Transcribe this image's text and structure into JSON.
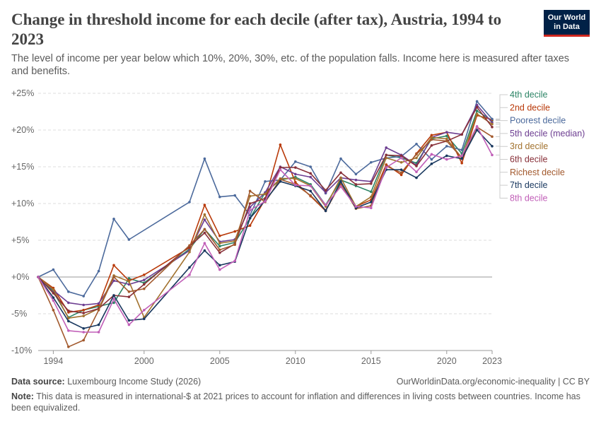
{
  "header": {
    "title": "Change in threshold income for each decile (after tax), Austria, 1994 to 2023",
    "subtitle": "The level of income per year below which 10%, 20%, 30%, etc. of the population falls. Income here is measured after taxes and benefits.",
    "logo_line1": "Our World",
    "logo_line2": "in Data"
  },
  "footer": {
    "source_label": "Data source:",
    "source_text": "Luxembourg Income Study (2026)",
    "url": "OurWorldinData.org/economic-inequality | CC BY",
    "note_label": "Note:",
    "note_text": "This data is measured in international-$ at 2021 prices to account for inflation and differences in living costs between countries. Income has been equivalized."
  },
  "chart_data": {
    "type": "line",
    "title": "Change in threshold income for each decile (after tax), Austria, 1994 to 2023",
    "x": [
      1993,
      1994,
      1995,
      1996,
      1997,
      1998,
      1999,
      2000,
      2003,
      2004,
      2005,
      2006,
      2007,
      2008,
      2009,
      2010,
      2011,
      2012,
      2013,
      2014,
      2015,
      2016,
      2017,
      2018,
      2019,
      2020,
      2021,
      2022,
      2023
    ],
    "xlim": [
      1993,
      2023
    ],
    "ylim": [
      -10,
      25
    ],
    "y_ticks": [
      -10,
      -5,
      0,
      5,
      10,
      15,
      20,
      25
    ],
    "y_tick_labels": [
      "-10%",
      "-5%",
      "+0%",
      "+5%",
      "+10%",
      "+15%",
      "+20%",
      "+25%"
    ],
    "x_ticks": [
      1994,
      2000,
      2005,
      2010,
      2015,
      2020,
      2023
    ],
    "x_tick_labels": [
      "1994",
      "2000",
      "2005",
      "2010",
      "2015",
      "2020",
      "2023"
    ],
    "grid": "horizontal dashed",
    "legend_placement": "right",
    "series": [
      {
        "name": "4th decile",
        "color": "#2c8465",
        "values": [
          0,
          -2,
          -5.5,
          -4.5,
          -4,
          -3.5,
          -0.2,
          -0.8,
          3.8,
          6.5,
          4.2,
          4.7,
          8.0,
          11.5,
          13.2,
          13.6,
          12.6,
          9.8,
          13.2,
          12.4,
          11.6,
          16.6,
          16.2,
          15.5,
          18.8,
          19.2,
          16.8,
          22.6,
          21.3
        ]
      },
      {
        "name": "2nd decile",
        "color": "#b93a0a",
        "values": [
          0,
          -1.5,
          -4.8,
          -4.5,
          -3.8,
          1.6,
          -0.5,
          0.3,
          4.0,
          9.8,
          5.6,
          6.2,
          7.0,
          10.6,
          18.0,
          12.9,
          11.0,
          9.0,
          12.8,
          9.6,
          10.5,
          15.3,
          13.9,
          16.8,
          19.3,
          19.7,
          15.5,
          22.0,
          21.4
        ]
      },
      {
        "name": "Poorest decile",
        "color": "#4c6a9c",
        "values": [
          0,
          1.0,
          -2.0,
          -2.6,
          0.8,
          7.9,
          5.1,
          null,
          10.2,
          16.1,
          10.9,
          11.1,
          8.4,
          13.0,
          13.2,
          15.7,
          15.0,
          11.4,
          16.1,
          14.0,
          15.6,
          16.2,
          16.4,
          18.1,
          16.0,
          17.8,
          17.3,
          23.9,
          21.5
        ]
      },
      {
        "name": "5th decile (median)",
        "color": "#6d3e91",
        "values": [
          0,
          -1.8,
          -3.5,
          -3.8,
          -3.6,
          -0.5,
          -1.0,
          -0.4,
          3.6,
          7.8,
          4.8,
          5.1,
          9.5,
          11.5,
          15.0,
          14.0,
          13.6,
          11.5,
          13.5,
          13.2,
          13.0,
          17.6,
          16.6,
          15.2,
          19.0,
          19.7,
          19.4,
          23.4,
          21.0
        ]
      },
      {
        "name": "3rd decile",
        "color": "#a2722e",
        "values": [
          0,
          -1.7,
          -5.6,
          -5.3,
          -4.3,
          0.2,
          -0.6,
          -5.5,
          3.4,
          8.5,
          4.6,
          4.9,
          11.0,
          11.3,
          13.4,
          13.4,
          12.4,
          9.6,
          13.5,
          9.6,
          10.9,
          16.2,
          15.6,
          16.2,
          19.0,
          18.8,
          16.2,
          22.2,
          20.8
        ]
      },
      {
        "name": "6th decile",
        "color": "#883039",
        "values": [
          0,
          -2.2,
          -4.6,
          -4.9,
          -4.3,
          -2.5,
          -2.7,
          -1.0,
          4.2,
          6.0,
          3.3,
          4.5,
          10.0,
          10.7,
          14.9,
          14.9,
          14.1,
          11.8,
          14.2,
          12.6,
          12.7,
          16.6,
          16.5,
          15.1,
          17.9,
          18.5,
          19.4,
          23.1,
          20.4
        ]
      },
      {
        "name": "Richest decile",
        "color": "#a2592d",
        "values": [
          0,
          -4.5,
          -9.5,
          -8.6,
          -4.5,
          0.0,
          -2.0,
          -1.6,
          4.3,
          6.5,
          3.7,
          4.4,
          11.7,
          10.2,
          13.3,
          12.6,
          11.1,
          9.1,
          12.7,
          9.3,
          9.7,
          15.1,
          14.2,
          16.7,
          18.7,
          18.5,
          16.2,
          20.4,
          19.1
        ]
      },
      {
        "name": "7th decile",
        "color": "#18375e",
        "values": [
          0,
          -2.8,
          -6.0,
          -7.0,
          -6.5,
          -2.5,
          -5.9,
          -5.7,
          1.3,
          3.6,
          1.6,
          2.1,
          8.0,
          10.4,
          13.0,
          12.4,
          11.7,
          9.0,
          13.0,
          9.4,
          10.2,
          14.6,
          14.6,
          13.5,
          15.4,
          16.5,
          16.1,
          20.0,
          17.8
        ]
      },
      {
        "name": "8th decile",
        "color": "#c15fb8",
        "values": [
          0,
          -3.2,
          -7.3,
          -7.5,
          -7.5,
          -3.0,
          -6.5,
          -4.5,
          0.3,
          4.6,
          1.0,
          2.2,
          9.1,
          10.3,
          14.6,
          12.5,
          12.4,
          9.8,
          12.3,
          9.6,
          9.4,
          14.9,
          16.2,
          14.3,
          16.7,
          16.0,
          16.5,
          20.5,
          16.6
        ]
      }
    ],
    "legend_order": [
      "4th decile",
      "2nd decile",
      "Poorest decile",
      "5th decile (median)",
      "3rd decile",
      "6th decile",
      "Richest decile",
      "7th decile",
      "8th decile"
    ]
  }
}
